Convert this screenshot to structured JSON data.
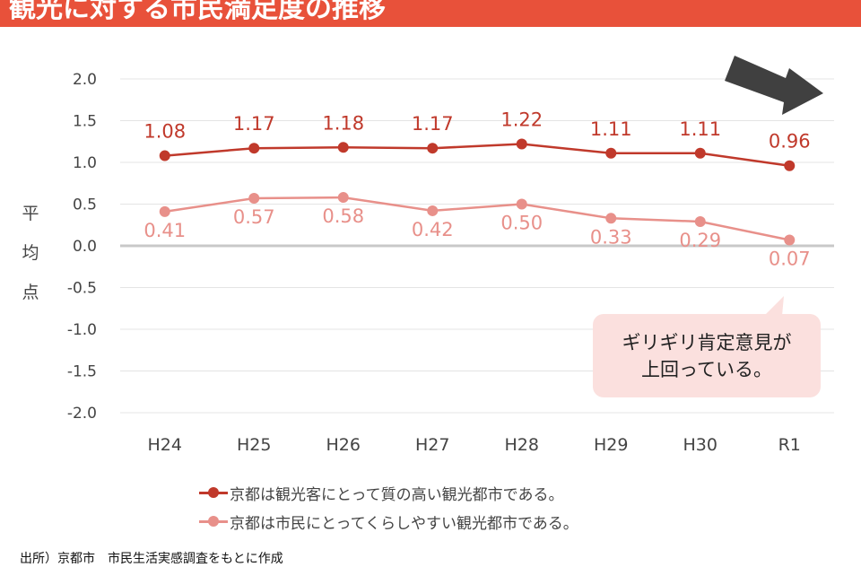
{
  "header": {
    "title": "観光に対する市民満足度の推移"
  },
  "chart_data": {
    "type": "line",
    "categories": [
      "H24",
      "H25",
      "H26",
      "H27",
      "H28",
      "H29",
      "H30",
      "R1"
    ],
    "series": [
      {
        "name": "京都は観光客にとって質の高い観光都市である。",
        "color": "#c0392b",
        "values": [
          1.08,
          1.17,
          1.18,
          1.17,
          1.22,
          1.11,
          1.11,
          0.96
        ],
        "labels": [
          "1.08",
          "1.17",
          "1.18",
          "1.17",
          "1.22",
          "1.11",
          "1.11",
          "0.96"
        ]
      },
      {
        "name": "京都は市民にとってくらしやすい観光都市である。",
        "color": "#e8908a",
        "values": [
          0.41,
          0.57,
          0.58,
          0.42,
          0.5,
          0.33,
          0.29,
          0.07
        ],
        "labels": [
          "0.41",
          "0.57",
          "0.58",
          "0.42",
          "0.50",
          "0.33",
          "0.29",
          "0.07"
        ]
      }
    ],
    "ylim": [
      -2.0,
      2.0
    ],
    "yticks": [
      "2.0",
      "1.5",
      "1.0",
      "0.5",
      "0.0",
      "-0.5",
      "-1.0",
      "-1.5",
      "-2.0"
    ],
    "ylabel": "平均点",
    "grid": true,
    "legend": "bottom"
  },
  "annotation": {
    "text": "ギリギリ肯定意見が\n上回っている。"
  },
  "source": "出所）京都市　市民生活実感調査をもとに作成"
}
